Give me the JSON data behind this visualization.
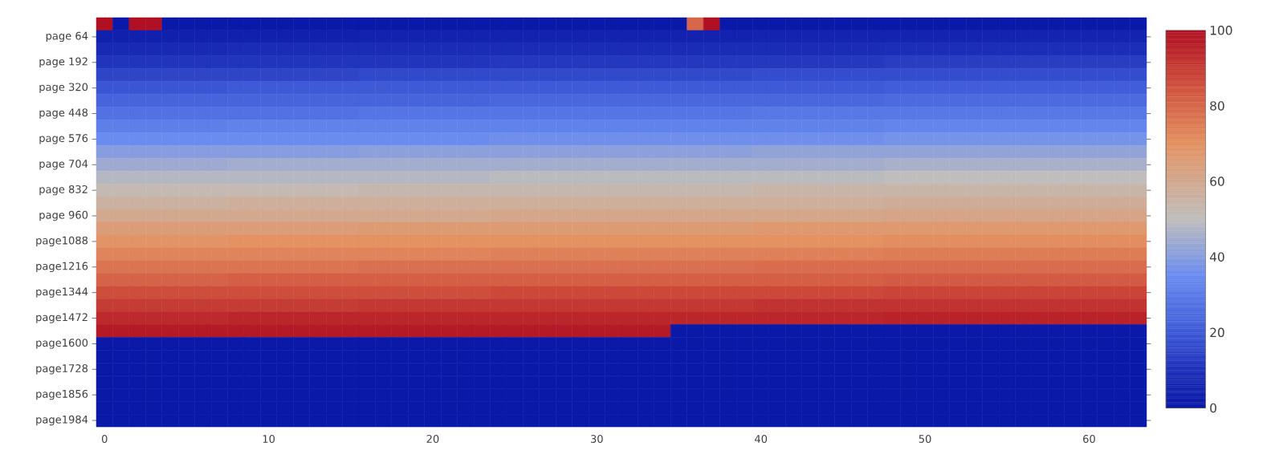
{
  "chart_data": {
    "type": "heatmap",
    "categories": [
      "0",
      null,
      null,
      null,
      null,
      null,
      null,
      null,
      null,
      null,
      "10",
      null,
      null,
      null,
      null,
      null,
      null,
      null,
      null,
      null,
      "20",
      null,
      null,
      null,
      null,
      null,
      null,
      null,
      null,
      null,
      "30",
      null,
      null,
      null,
      null,
      null,
      null,
      null,
      null,
      null,
      "40",
      null,
      null,
      null,
      null,
      null,
      null,
      null,
      null,
      null,
      "50",
      null,
      null,
      null,
      null,
      null,
      null,
      null,
      null,
      null,
      "60",
      null,
      null,
      null
    ],
    "y_categories": [
      null,
      "page  64",
      null,
      "page 192",
      null,
      "page 320",
      null,
      "page 448",
      null,
      "page 576",
      null,
      "page 704",
      null,
      "page 832",
      null,
      "page 960",
      null,
      "page1088",
      null,
      "page1216",
      null,
      "page1344",
      null,
      "page1472",
      null,
      "page1600",
      null,
      "page1728",
      null,
      "page1856",
      null,
      "page1984"
    ],
    "clim": [
      0,
      100
    ],
    "cticks": [
      0,
      20,
      40,
      60,
      80,
      100
    ],
    "cells": [
      [
        100,
        0,
        100,
        100,
        0,
        0,
        0,
        0,
        0,
        0,
        0,
        0,
        0,
        0,
        0,
        0,
        0,
        0,
        0,
        0,
        0,
        0,
        0,
        0,
        0,
        0,
        0,
        0,
        0,
        0,
        0,
        0,
        0,
        0,
        0,
        0,
        80,
        100,
        0,
        0,
        0,
        0,
        0,
        0,
        0,
        0,
        0,
        0,
        0,
        0,
        0,
        0,
        0,
        0,
        0,
        0,
        0,
        0,
        0,
        0,
        0,
        0,
        0,
        0
      ],
      [
        3,
        3,
        3,
        3,
        3,
        3,
        3,
        3,
        3,
        3,
        3,
        3,
        3,
        3,
        3,
        3,
        4,
        4,
        4,
        4,
        4,
        4,
        4,
        4,
        4,
        4,
        4,
        4,
        4,
        4,
        4,
        4,
        4,
        4,
        4,
        4,
        4,
        4,
        4,
        4,
        5,
        5,
        5,
        5,
        5,
        5,
        5,
        5,
        5,
        5,
        5,
        5,
        5,
        5,
        5,
        5,
        5,
        5,
        5,
        5,
        5,
        5,
        5,
        5
      ],
      [
        7,
        7,
        7,
        7,
        7,
        7,
        7,
        7,
        8,
        8,
        8,
        8,
        8,
        8,
        8,
        8,
        8,
        8,
        8,
        8,
        8,
        8,
        8,
        8,
        8,
        8,
        8,
        8,
        8,
        8,
        8,
        8,
        8,
        8,
        8,
        8,
        8,
        8,
        8,
        8,
        8,
        8,
        8,
        8,
        8,
        8,
        8,
        8,
        9,
        9,
        9,
        9,
        9,
        9,
        9,
        9,
        9,
        9,
        9,
        9,
        9,
        9,
        9,
        9
      ],
      [
        11,
        11,
        11,
        11,
        11,
        11,
        11,
        11,
        11,
        11,
        11,
        11,
        11,
        11,
        11,
        11,
        11,
        11,
        11,
        11,
        11,
        11,
        11,
        11,
        12,
        12,
        12,
        12,
        12,
        12,
        12,
        12,
        12,
        12,
        12,
        12,
        12,
        12,
        12,
        12,
        12,
        12,
        12,
        12,
        12,
        12,
        12,
        12,
        13,
        13,
        13,
        13,
        13,
        13,
        13,
        13,
        13,
        13,
        13,
        13,
        13,
        13,
        13,
        13
      ],
      [
        15,
        15,
        15,
        15,
        15,
        15,
        15,
        15,
        15,
        15,
        15,
        15,
        15,
        15,
        15,
        15,
        16,
        16,
        16,
        16,
        16,
        16,
        16,
        16,
        16,
        16,
        16,
        16,
        16,
        16,
        16,
        16,
        16,
        16,
        16,
        16,
        16,
        16,
        16,
        16,
        17,
        17,
        17,
        17,
        17,
        17,
        17,
        17,
        17,
        17,
        17,
        17,
        17,
        17,
        17,
        17,
        17,
        17,
        17,
        17,
        17,
        17,
        17,
        17
      ],
      [
        19,
        19,
        19,
        19,
        19,
        19,
        19,
        19,
        20,
        20,
        20,
        20,
        20,
        20,
        20,
        20,
        20,
        20,
        20,
        20,
        20,
        20,
        20,
        20,
        20,
        20,
        20,
        20,
        20,
        20,
        20,
        20,
        20,
        20,
        20,
        20,
        20,
        20,
        20,
        20,
        20,
        20,
        20,
        20,
        20,
        20,
        20,
        20,
        21,
        21,
        21,
        21,
        21,
        21,
        21,
        21,
        21,
        21,
        21,
        21,
        21,
        21,
        21,
        21
      ],
      [
        23,
        23,
        23,
        23,
        23,
        23,
        23,
        23,
        23,
        23,
        23,
        23,
        23,
        23,
        23,
        23,
        23,
        23,
        23,
        23,
        23,
        23,
        23,
        23,
        24,
        24,
        24,
        24,
        24,
        24,
        24,
        24,
        24,
        24,
        24,
        24,
        24,
        24,
        24,
        24,
        24,
        24,
        24,
        24,
        24,
        24,
        24,
        24,
        25,
        25,
        25,
        25,
        25,
        25,
        25,
        25,
        25,
        25,
        25,
        25,
        25,
        25,
        25,
        25
      ],
      [
        27,
        27,
        27,
        27,
        27,
        27,
        27,
        27,
        27,
        27,
        27,
        27,
        27,
        27,
        27,
        27,
        28,
        28,
        28,
        28,
        28,
        28,
        28,
        28,
        28,
        28,
        28,
        28,
        28,
        28,
        28,
        28,
        28,
        28,
        28,
        28,
        28,
        28,
        28,
        28,
        29,
        29,
        29,
        29,
        29,
        29,
        29,
        29,
        29,
        29,
        29,
        29,
        29,
        29,
        29,
        29,
        29,
        29,
        29,
        29,
        29,
        29,
        29,
        29
      ],
      [
        31,
        31,
        31,
        31,
        31,
        31,
        31,
        31,
        32,
        32,
        32,
        32,
        32,
        32,
        32,
        32,
        32,
        32,
        32,
        32,
        32,
        32,
        32,
        32,
        32,
        32,
        32,
        32,
        32,
        32,
        32,
        32,
        32,
        32,
        32,
        32,
        32,
        32,
        32,
        32,
        32,
        32,
        32,
        32,
        32,
        32,
        32,
        32,
        33,
        33,
        33,
        33,
        33,
        33,
        33,
        33,
        33,
        33,
        33,
        33,
        33,
        33,
        33,
        33
      ],
      [
        35,
        35,
        35,
        35,
        35,
        35,
        35,
        35,
        35,
        35,
        35,
        35,
        35,
        35,
        35,
        35,
        35,
        35,
        35,
        35,
        35,
        35,
        35,
        35,
        36,
        36,
        36,
        36,
        36,
        36,
        36,
        36,
        36,
        36,
        36,
        36,
        36,
        36,
        36,
        36,
        36,
        36,
        36,
        36,
        36,
        36,
        36,
        36,
        37,
        37,
        37,
        37,
        37,
        37,
        37,
        37,
        37,
        37,
        37,
        37,
        37,
        37,
        37,
        37
      ],
      [
        40,
        40,
        40,
        40,
        40,
        40,
        40,
        40,
        40,
        40,
        40,
        40,
        40,
        40,
        40,
        40,
        41,
        41,
        41,
        41,
        41,
        41,
        41,
        41,
        41,
        41,
        41,
        41,
        41,
        41,
        41,
        41,
        41,
        41,
        41,
        41,
        41,
        41,
        41,
        41,
        42,
        42,
        42,
        42,
        42,
        42,
        42,
        42,
        42,
        42,
        42,
        42,
        42,
        42,
        42,
        42,
        42,
        42,
        42,
        42,
        42,
        42,
        42,
        42
      ],
      [
        44,
        44,
        44,
        44,
        44,
        44,
        44,
        44,
        45,
        45,
        45,
        45,
        45,
        45,
        45,
        45,
        45,
        45,
        45,
        45,
        45,
        45,
        45,
        45,
        45,
        45,
        45,
        45,
        45,
        45,
        45,
        45,
        45,
        45,
        45,
        45,
        45,
        45,
        45,
        45,
        45,
        45,
        45,
        45,
        45,
        45,
        45,
        45,
        46,
        46,
        46,
        46,
        46,
        46,
        46,
        46,
        46,
        46,
        46,
        46,
        46,
        46,
        46,
        46
      ],
      [
        48,
        48,
        48,
        48,
        48,
        48,
        48,
        48,
        48,
        48,
        48,
        48,
        48,
        48,
        48,
        48,
        48,
        48,
        48,
        48,
        48,
        48,
        48,
        48,
        49,
        49,
        49,
        49,
        49,
        49,
        49,
        49,
        49,
        49,
        49,
        49,
        49,
        49,
        49,
        49,
        49,
        49,
        49,
        49,
        49,
        49,
        49,
        49,
        50,
        50,
        50,
        50,
        50,
        50,
        50,
        50,
        50,
        50,
        50,
        50,
        50,
        50,
        50,
        50
      ],
      [
        52,
        52,
        52,
        52,
        52,
        52,
        52,
        52,
        52,
        52,
        52,
        52,
        52,
        52,
        52,
        52,
        53,
        53,
        53,
        53,
        53,
        53,
        53,
        53,
        53,
        53,
        53,
        53,
        53,
        53,
        53,
        53,
        53,
        53,
        53,
        53,
        53,
        53,
        53,
        53,
        54,
        54,
        54,
        54,
        54,
        54,
        54,
        54,
        54,
        54,
        54,
        54,
        54,
        54,
        54,
        54,
        54,
        54,
        54,
        54,
        54,
        54,
        54,
        54
      ],
      [
        56,
        56,
        56,
        56,
        56,
        56,
        56,
        56,
        57,
        57,
        57,
        57,
        57,
        57,
        57,
        57,
        57,
        57,
        57,
        57,
        57,
        57,
        57,
        57,
        57,
        57,
        57,
        57,
        57,
        57,
        57,
        57,
        57,
        57,
        57,
        57,
        57,
        57,
        57,
        57,
        57,
        57,
        57,
        57,
        57,
        57,
        57,
        57,
        58,
        58,
        58,
        58,
        58,
        58,
        58,
        58,
        58,
        58,
        58,
        58,
        58,
        58,
        58,
        58
      ],
      [
        60,
        60,
        60,
        60,
        60,
        60,
        60,
        60,
        60,
        60,
        60,
        60,
        60,
        60,
        60,
        60,
        60,
        60,
        60,
        60,
        60,
        60,
        60,
        60,
        61,
        61,
        61,
        61,
        61,
        61,
        61,
        61,
        61,
        61,
        61,
        61,
        61,
        61,
        61,
        61,
        61,
        61,
        61,
        61,
        61,
        61,
        61,
        61,
        62,
        62,
        62,
        62,
        62,
        62,
        62,
        62,
        62,
        62,
        62,
        62,
        62,
        62,
        62,
        62
      ],
      [
        65,
        65,
        65,
        65,
        65,
        65,
        65,
        65,
        65,
        65,
        65,
        65,
        65,
        65,
        65,
        65,
        66,
        66,
        66,
        66,
        66,
        66,
        66,
        66,
        66,
        66,
        66,
        66,
        66,
        66,
        66,
        66,
        66,
        66,
        66,
        66,
        66,
        66,
        66,
        66,
        67,
        67,
        67,
        67,
        67,
        67,
        67,
        67,
        67,
        67,
        67,
        67,
        67,
        67,
        67,
        67,
        67,
        67,
        67,
        67,
        67,
        67,
        67,
        67
      ],
      [
        69,
        69,
        69,
        69,
        69,
        69,
        69,
        69,
        70,
        70,
        70,
        70,
        70,
        70,
        70,
        70,
        70,
        70,
        70,
        70,
        70,
        70,
        70,
        70,
        70,
        70,
        70,
        70,
        70,
        70,
        70,
        70,
        70,
        70,
        70,
        70,
        70,
        70,
        70,
        70,
        70,
        70,
        70,
        70,
        70,
        70,
        70,
        70,
        71,
        71,
        71,
        71,
        71,
        71,
        71,
        71,
        71,
        71,
        71,
        71,
        71,
        71,
        71,
        71
      ],
      [
        73,
        73,
        73,
        73,
        73,
        73,
        73,
        73,
        73,
        73,
        73,
        73,
        73,
        73,
        73,
        73,
        73,
        73,
        73,
        73,
        73,
        73,
        73,
        73,
        74,
        74,
        74,
        74,
        74,
        74,
        74,
        74,
        74,
        74,
        74,
        74,
        74,
        74,
        74,
        74,
        74,
        74,
        74,
        74,
        74,
        74,
        74,
        74,
        75,
        75,
        75,
        75,
        75,
        75,
        75,
        75,
        75,
        75,
        75,
        75,
        75,
        75,
        75,
        75
      ],
      [
        77,
        77,
        77,
        77,
        77,
        77,
        77,
        77,
        77,
        77,
        77,
        77,
        77,
        77,
        77,
        77,
        78,
        78,
        78,
        78,
        78,
        78,
        78,
        78,
        78,
        78,
        78,
        78,
        78,
        78,
        78,
        78,
        78,
        78,
        78,
        78,
        78,
        78,
        78,
        78,
        79,
        79,
        79,
        79,
        79,
        79,
        79,
        79,
        79,
        79,
        79,
        79,
        79,
        79,
        79,
        79,
        79,
        79,
        79,
        79,
        79,
        79,
        79,
        79
      ],
      [
        81,
        81,
        81,
        81,
        81,
        81,
        81,
        81,
        82,
        82,
        82,
        82,
        82,
        82,
        82,
        82,
        82,
        82,
        82,
        82,
        82,
        82,
        82,
        82,
        82,
        82,
        82,
        82,
        82,
        82,
        82,
        82,
        82,
        82,
        82,
        82,
        82,
        82,
        82,
        82,
        82,
        82,
        82,
        82,
        82,
        82,
        82,
        82,
        83,
        83,
        83,
        83,
        83,
        83,
        83,
        83,
        83,
        83,
        83,
        83,
        83,
        83,
        83,
        83
      ],
      [
        86,
        86,
        86,
        86,
        86,
        86,
        86,
        86,
        86,
        86,
        86,
        86,
        86,
        86,
        86,
        86,
        86,
        86,
        86,
        86,
        86,
        86,
        86,
        86,
        87,
        87,
        87,
        87,
        87,
        87,
        87,
        87,
        87,
        87,
        87,
        87,
        87,
        87,
        87,
        87,
        87,
        87,
        87,
        87,
        87,
        87,
        87,
        87,
        88,
        88,
        88,
        88,
        88,
        88,
        88,
        88,
        88,
        88,
        88,
        88,
        88,
        88,
        88,
        88
      ],
      [
        90,
        90,
        90,
        90,
        90,
        90,
        90,
        90,
        90,
        90,
        90,
        90,
        90,
        90,
        90,
        90,
        91,
        91,
        91,
        91,
        91,
        91,
        91,
        91,
        91,
        91,
        91,
        91,
        91,
        91,
        91,
        91,
        91,
        91,
        91,
        91,
        91,
        91,
        91,
        91,
        92,
        92,
        92,
        92,
        92,
        92,
        92,
        92,
        92,
        92,
        92,
        92,
        92,
        92,
        92,
        92,
        92,
        92,
        92,
        92,
        92,
        92,
        92,
        92
      ],
      [
        94,
        94,
        94,
        94,
        94,
        94,
        94,
        94,
        95,
        95,
        95,
        95,
        95,
        95,
        95,
        95,
        95,
        95,
        95,
        95,
        95,
        95,
        95,
        95,
        95,
        95,
        95,
        95,
        95,
        95,
        95,
        95,
        95,
        95,
        95,
        95,
        95,
        95,
        95,
        95,
        95,
        95,
        95,
        95,
        95,
        95,
        95,
        95,
        96,
        96,
        96,
        96,
        96,
        96,
        96,
        96,
        96,
        96,
        96,
        96,
        96,
        96,
        96,
        96
      ],
      [
        98,
        98,
        98,
        98,
        98,
        98,
        98,
        98,
        98,
        98,
        98,
        98,
        98,
        98,
        98,
        98,
        98,
        98,
        98,
        98,
        98,
        98,
        98,
        98,
        98,
        98,
        98,
        98,
        98,
        98,
        98,
        98,
        98,
        98,
        98,
        0,
        0,
        0,
        0,
        0,
        0,
        0,
        0,
        0,
        0,
        0,
        0,
        0,
        0,
        0,
        0,
        0,
        0,
        0,
        0,
        0,
        0,
        0,
        0,
        0,
        0,
        0,
        0,
        0
      ],
      [
        0,
        0,
        0,
        0,
        0,
        0,
        0,
        0,
        0,
        0,
        0,
        0,
        0,
        0,
        0,
        0,
        0,
        0,
        0,
        0,
        0,
        0,
        0,
        0,
        0,
        0,
        0,
        0,
        0,
        0,
        0,
        0,
        0,
        0,
        0,
        0,
        0,
        0,
        0,
        0,
        0,
        0,
        0,
        0,
        0,
        0,
        0,
        0,
        0,
        0,
        0,
        0,
        0,
        0,
        0,
        0,
        0,
        0,
        0,
        0,
        0,
        0,
        0,
        0
      ],
      [
        0,
        0,
        0,
        0,
        0,
        0,
        0,
        0,
        0,
        0,
        0,
        0,
        0,
        0,
        0,
        0,
        0,
        0,
        0,
        0,
        0,
        0,
        0,
        0,
        0,
        0,
        0,
        0,
        0,
        0,
        0,
        0,
        0,
        0,
        0,
        0,
        0,
        0,
        0,
        0,
        0,
        0,
        0,
        0,
        0,
        0,
        0,
        0,
        0,
        0,
        0,
        0,
        0,
        0,
        0,
        0,
        0,
        0,
        0,
        0,
        0,
        0,
        0,
        0
      ],
      [
        0,
        0,
        0,
        0,
        0,
        0,
        0,
        0,
        0,
        0,
        0,
        0,
        0,
        0,
        0,
        0,
        0,
        0,
        0,
        0,
        0,
        0,
        0,
        0,
        0,
        0,
        0,
        0,
        0,
        0,
        0,
        0,
        0,
        0,
        0,
        0,
        0,
        0,
        0,
        0,
        0,
        0,
        0,
        0,
        0,
        0,
        0,
        0,
        0,
        0,
        0,
        0,
        0,
        0,
        0,
        0,
        0,
        0,
        0,
        0,
        0,
        0,
        0,
        0
      ],
      [
        0,
        0,
        0,
        0,
        0,
        0,
        0,
        0,
        0,
        0,
        0,
        0,
        0,
        0,
        0,
        0,
        0,
        0,
        0,
        0,
        0,
        0,
        0,
        0,
        0,
        0,
        0,
        0,
        0,
        0,
        0,
        0,
        0,
        0,
        0,
        0,
        0,
        0,
        0,
        0,
        0,
        0,
        0,
        0,
        0,
        0,
        0,
        0,
        0,
        0,
        0,
        0,
        0,
        0,
        0,
        0,
        0,
        0,
        0,
        0,
        0,
        0,
        0,
        0
      ],
      [
        0,
        0,
        0,
        0,
        0,
        0,
        0,
        0,
        0,
        0,
        0,
        0,
        0,
        0,
        0,
        0,
        0,
        0,
        0,
        0,
        0,
        0,
        0,
        0,
        0,
        0,
        0,
        0,
        0,
        0,
        0,
        0,
        0,
        0,
        0,
        0,
        0,
        0,
        0,
        0,
        0,
        0,
        0,
        0,
        0,
        0,
        0,
        0,
        0,
        0,
        0,
        0,
        0,
        0,
        0,
        0,
        0,
        0,
        0,
        0,
        0,
        0,
        0,
        0
      ],
      [
        0,
        0,
        0,
        0,
        0,
        0,
        0,
        0,
        0,
        0,
        0,
        0,
        0,
        0,
        0,
        0,
        0,
        0,
        0,
        0,
        0,
        0,
        0,
        0,
        0,
        0,
        0,
        0,
        0,
        0,
        0,
        0,
        0,
        0,
        0,
        0,
        0,
        0,
        0,
        0,
        0,
        0,
        0,
        0,
        0,
        0,
        0,
        0,
        0,
        0,
        0,
        0,
        0,
        0,
        0,
        0,
        0,
        0,
        0,
        0,
        0,
        0,
        0,
        0
      ],
      [
        0,
        0,
        0,
        0,
        0,
        0,
        0,
        0,
        0,
        0,
        0,
        0,
        0,
        0,
        0,
        0,
        0,
        0,
        0,
        0,
        0,
        0,
        0,
        0,
        0,
        0,
        0,
        0,
        0,
        0,
        0,
        0,
        0,
        0,
        0,
        0,
        0,
        0,
        0,
        0,
        0,
        0,
        0,
        0,
        0,
        0,
        0,
        0,
        0,
        0,
        0,
        0,
        0,
        0,
        0,
        0,
        0,
        0,
        0,
        0,
        0,
        0,
        0,
        0
      ]
    ]
  }
}
